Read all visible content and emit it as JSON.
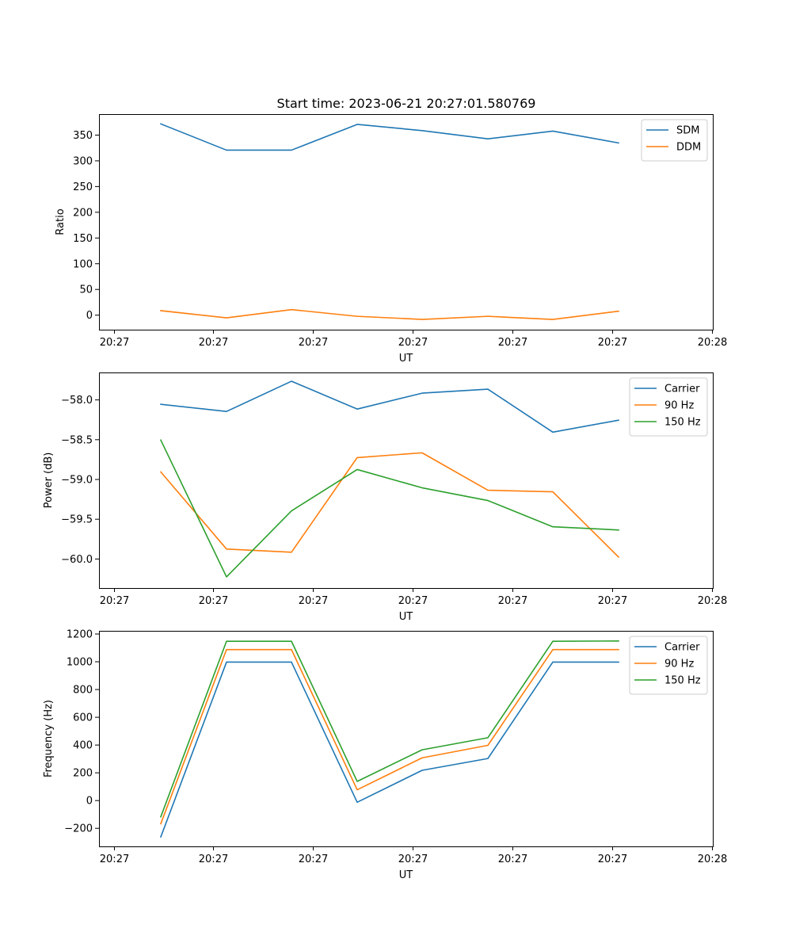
{
  "figure": {
    "title": "Start time: 2023-06-21 20:27:01.580769"
  },
  "chart_data": [
    {
      "type": "line",
      "title": "",
      "xlabel": "UT",
      "ylabel": "Ratio",
      "x_tick_labels": [
        "20:27",
        "20:27",
        "20:27",
        "20:27",
        "20:27",
        "20:27",
        "20:28"
      ],
      "y_ticks": [
        0,
        50,
        100,
        150,
        200,
        250,
        300,
        350
      ],
      "y_tick_labels": [
        "0",
        "50",
        "100",
        "150",
        "200",
        "250",
        "300",
        "350"
      ],
      "ylim": [
        -29,
        390
      ],
      "legend_position": "top-right",
      "grid": false,
      "series": [
        {
          "name": "SDM",
          "color": "#1f77b4",
          "values": [
            371,
            320,
            320,
            370,
            358,
            342,
            357,
            334
          ]
        },
        {
          "name": "DDM",
          "color": "#ff7f0e",
          "values": [
            8,
            -6,
            10,
            -3,
            -9,
            -3,
            -9,
            7
          ]
        }
      ]
    },
    {
      "type": "line",
      "title": "",
      "xlabel": "UT",
      "ylabel": "Power (dB)",
      "x_tick_labels": [
        "20:27",
        "20:27",
        "20:27",
        "20:27",
        "20:27",
        "20:27",
        "20:28"
      ],
      "y_ticks": [
        -60.0,
        -59.5,
        -59.0,
        -58.5,
        -58.0
      ],
      "y_tick_labels": [
        "−60.0",
        "−59.5",
        "−59.0",
        "−58.5",
        "−58.0"
      ],
      "ylim": [
        -60.37,
        -57.66
      ],
      "legend_position": "top-right",
      "grid": false,
      "series": [
        {
          "name": "Carrier",
          "color": "#1f77b4",
          "values": [
            -58.06,
            -58.15,
            -57.77,
            -58.12,
            -57.92,
            -57.87,
            -58.41,
            -58.26
          ]
        },
        {
          "name": "90 Hz",
          "color": "#ff7f0e",
          "values": [
            -58.91,
            -59.88,
            -59.92,
            -58.73,
            -58.67,
            -59.14,
            -59.16,
            -59.98
          ]
        },
        {
          "name": "150 Hz",
          "color": "#2ca02c",
          "values": [
            -58.51,
            -60.23,
            -59.4,
            -58.88,
            -59.11,
            -59.27,
            -59.6,
            -59.64
          ]
        }
      ]
    },
    {
      "type": "line",
      "title": "",
      "xlabel": "UT",
      "ylabel": "Frequency (Hz)",
      "x_tick_labels": [
        "20:27",
        "20:27",
        "20:27",
        "20:27",
        "20:27",
        "20:27",
        "20:28"
      ],
      "y_ticks": [
        -200,
        0,
        200,
        400,
        600,
        800,
        1000,
        1200
      ],
      "y_tick_labels": [
        "−200",
        "0",
        "200",
        "400",
        "600",
        "800",
        "1000",
        "1200"
      ],
      "ylim": [
        -333,
        1220
      ],
      "legend_position": "top-right",
      "grid": false,
      "series": [
        {
          "name": "Carrier",
          "color": "#1f77b4",
          "values": [
            -265,
            995,
            995,
            -15,
            215,
            300,
            995,
            995
          ]
        },
        {
          "name": "90 Hz",
          "color": "#ff7f0e",
          "values": [
            -170,
            1085,
            1085,
            75,
            305,
            395,
            1085,
            1085
          ]
        },
        {
          "name": "150 Hz",
          "color": "#2ca02c",
          "values": [
            -120,
            1145,
            1145,
            135,
            363,
            450,
            1145,
            1147
          ]
        }
      ]
    }
  ]
}
